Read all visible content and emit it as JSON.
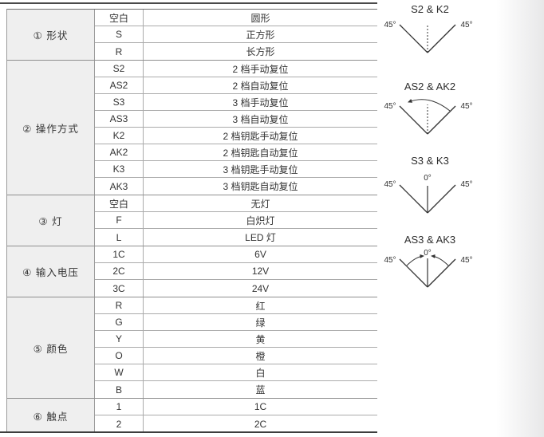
{
  "table": {
    "groups": [
      {
        "label": "① 形状",
        "rows": [
          {
            "code": "空白",
            "desc": "圆形"
          },
          {
            "code": "S",
            "desc": "正方形"
          },
          {
            "code": "R",
            "desc": "长方形"
          }
        ]
      },
      {
        "label": "② 操作方式",
        "rows": [
          {
            "code": "S2",
            "desc": "2 档手动复位"
          },
          {
            "code": "AS2",
            "desc": "2 档自动复位"
          },
          {
            "code": "S3",
            "desc": "3 档手动复位"
          },
          {
            "code": "AS3",
            "desc": "3 档自动复位"
          },
          {
            "code": "K2",
            "desc": "2 档钥匙手动复位"
          },
          {
            "code": "AK2",
            "desc": "2 档钥匙自动复位"
          },
          {
            "code": "K3",
            "desc": "3 档钥匙手动复位"
          },
          {
            "code": "AK3",
            "desc": "3 档钥匙自动复位"
          }
        ]
      },
      {
        "label": "③ 灯",
        "rows": [
          {
            "code": "空白",
            "desc": "无灯"
          },
          {
            "code": "F",
            "desc": "白炽灯"
          },
          {
            "code": "L",
            "desc": "LED 灯"
          }
        ]
      },
      {
        "label": "④ 输入电压",
        "rows": [
          {
            "code": "1C",
            "desc": "6V"
          },
          {
            "code": "2C",
            "desc": "12V"
          },
          {
            "code": "3C",
            "desc": "24V"
          }
        ]
      },
      {
        "label": "⑤ 颜色",
        "rows": [
          {
            "code": "R",
            "desc": "红"
          },
          {
            "code": "G",
            "desc": "绿"
          },
          {
            "code": "Y",
            "desc": "黄"
          },
          {
            "code": "O",
            "desc": "橙"
          },
          {
            "code": "W",
            "desc": "白"
          },
          {
            "code": "B",
            "desc": "蓝"
          }
        ]
      },
      {
        "label": "⑥ 触点",
        "rows": [
          {
            "code": "1",
            "desc": "1C"
          },
          {
            "code": "2",
            "desc": "2C"
          }
        ]
      }
    ]
  },
  "diagrams": [
    {
      "title": "S2 & K2",
      "left_label": "45°",
      "right_label": "45°",
      "style": "two-position-manual, dashed center line, no arrows"
    },
    {
      "title": "AS2 & AK2",
      "left_label": "45°",
      "right_label": "45°",
      "style": "two-position-auto, dashed center line, return arc with arrow"
    },
    {
      "title": "S3 & K3",
      "left_label": "45°",
      "right_label": "45°",
      "center_label": "0°",
      "style": "three-position-manual, solid center line"
    },
    {
      "title": "AS3 & AK3",
      "left_label": "45°",
      "right_label": "45°",
      "center_label": "0°",
      "style": "three-position-auto, solid center line, two return arcs with arrows"
    }
  ],
  "colors": {
    "category_cell_bg": "#efefef",
    "grid_line": "#ababab",
    "group_line": "#8f8f8f",
    "page_rule": "#3d3d3d",
    "text": "#333333",
    "diagram_line": "#333333"
  }
}
